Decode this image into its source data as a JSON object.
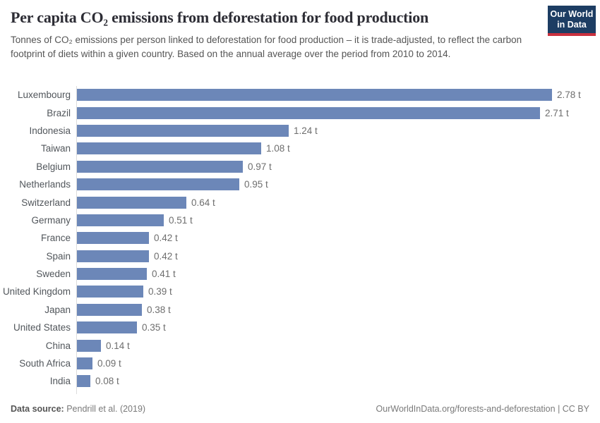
{
  "header": {
    "title": "Per capita CO₂ emissions from deforestation for food production",
    "subtitle": "Tonnes of CO₂ emissions per person linked to deforestation for food production – it is trade-adjusted, to reflect the carbon footprint of diets within a given country. Based on the annual average over the period from 2010 to 2014.",
    "logo": {
      "line1": "Our World",
      "line2": "in Data",
      "bg_color": "#1d3d63",
      "accent_color": "#c9303e"
    }
  },
  "chart_data": {
    "type": "bar",
    "orientation": "horizontal",
    "title": "Per capita CO₂ emissions from deforestation for food production",
    "categories": [
      "Luxembourg",
      "Brazil",
      "Indonesia",
      "Taiwan",
      "Belgium",
      "Netherlands",
      "Switzerland",
      "Germany",
      "France",
      "Spain",
      "Sweden",
      "United Kingdom",
      "Japan",
      "United States",
      "China",
      "South Africa",
      "India"
    ],
    "values": [
      2.78,
      2.71,
      1.24,
      1.08,
      0.97,
      0.95,
      0.64,
      0.51,
      0.42,
      0.42,
      0.41,
      0.39,
      0.38,
      0.35,
      0.14,
      0.09,
      0.08
    ],
    "value_labels": [
      "2.78 t",
      "2.71 t",
      "1.24 t",
      "1.08 t",
      "0.97 t",
      "0.95 t",
      "0.64 t",
      "0.51 t",
      "0.42 t",
      "0.42 t",
      "0.41 t",
      "0.39 t",
      "0.38 t",
      "0.35 t",
      "0.14 t",
      "0.09 t",
      "0.08 t"
    ],
    "unit": "t",
    "xlim": [
      0,
      2.9
    ],
    "grid": false,
    "legend": "none",
    "bar_color": "#6c87b8",
    "axis_line_color": "#dcdcdc"
  },
  "footer": {
    "source_label": "Data source:",
    "source_value": " Pendrill et al. (2019)",
    "link": "OurWorldInData.org/forests-and-deforestation | CC BY"
  }
}
